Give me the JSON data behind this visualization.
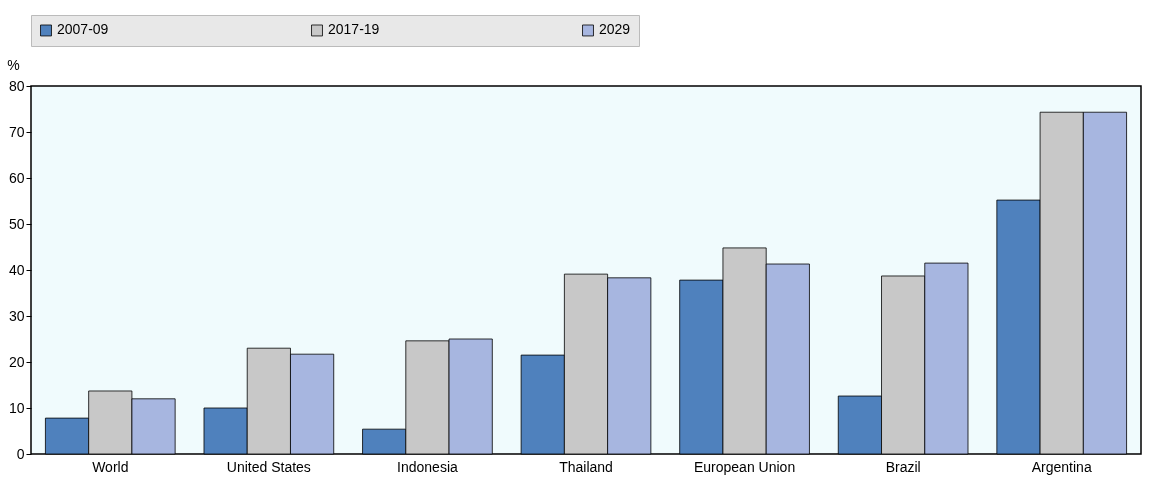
{
  "chart_data": {
    "type": "bar",
    "ylabel": "%",
    "categories": [
      "World",
      "United States",
      "Indonesia",
      "Thailand",
      "European Union",
      "Brazil",
      "Argentina"
    ],
    "series": [
      {
        "name": "2007-09",
        "color": "#4f81bd",
        "values": [
          7.8,
          10,
          5.4,
          21.5,
          37.8,
          12.6,
          55.2
        ]
      },
      {
        "name": "2017-19",
        "color": "#c8c8c8",
        "values": [
          13.7,
          23,
          24.6,
          39.1,
          44.8,
          38.7,
          74.3
        ]
      },
      {
        "name": "2029",
        "color": "#a7b6e0",
        "values": [
          12,
          21.7,
          25,
          38.3,
          41.3,
          41.5,
          74.3
        ]
      }
    ],
    "ylim": [
      0,
      80
    ],
    "yticks": [
      0,
      10,
      20,
      30,
      40,
      50,
      60,
      70,
      80
    ],
    "grid": false,
    "legend": "top"
  }
}
